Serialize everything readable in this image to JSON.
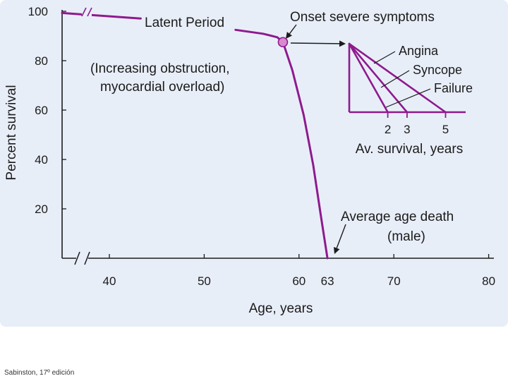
{
  "colors": {
    "panel_background": "#e8eef8",
    "curve": "#8e1a8e",
    "marker_fill": "#d889cf",
    "axis": "#1b1b1b"
  },
  "chart_data": [
    {
      "type": "line",
      "xlabel": "Age, years",
      "ylabel": "Percent survival",
      "xlim": [
        35,
        80
      ],
      "ylim": [
        0,
        100
      ],
      "x_ticks": [
        40,
        50,
        60,
        63,
        70,
        80
      ],
      "x_tick_labels": [
        "40",
        "50",
        "60",
        "63",
        "70",
        "80"
      ],
      "y_ticks": [
        20,
        40,
        60,
        80,
        100
      ],
      "y_tick_labels": [
        "20",
        "40",
        "60",
        "80",
        "100"
      ],
      "axis_breaks": {
        "x": true,
        "y": true
      },
      "grid": false,
      "series": [
        {
          "segments": [
            {
              "x": [
                35,
                43.3
              ],
              "y": [
                99.3,
                97.1
              ]
            },
            {
              "x": [
                53.3,
                56.2,
                57.7,
                58.3
              ],
              "y": [
                92.5,
                90.9,
                89.5,
                87.5
              ]
            },
            {
              "x": [
                58.3,
                59.3,
                60.5,
                61.5,
                62.3,
                63
              ],
              "y": [
                87.5,
                76.1,
                57.9,
                37.6,
                17.3,
                0
              ]
            }
          ]
        }
      ],
      "points": [
        {
          "label": "Onset severe symptoms",
          "x": 58.3,
          "y": 87.5
        }
      ],
      "annotations": {
        "latent_period": "Latent Period",
        "obstruction_line1": "(Increasing obstruction,",
        "obstruction_line2": "myocardial overload)",
        "onset": "Onset severe symptoms",
        "death_line1": "Average age death",
        "death_line2": "(male)"
      }
    },
    {
      "type": "line",
      "xlabel": "Av. survival, years",
      "x_tick_labels": [
        "2",
        "3",
        "5"
      ],
      "series": [
        {
          "name": "Angina",
          "x": [
            0,
            5
          ],
          "y": [
            1,
            0
          ]
        },
        {
          "name": "Syncope",
          "x": [
            0,
            3
          ],
          "y": [
            1,
            0
          ]
        },
        {
          "name": "Failure",
          "x": [
            0,
            2
          ],
          "y": [
            1,
            0
          ]
        }
      ]
    }
  ],
  "caption": "Sabinston, 17º edición"
}
